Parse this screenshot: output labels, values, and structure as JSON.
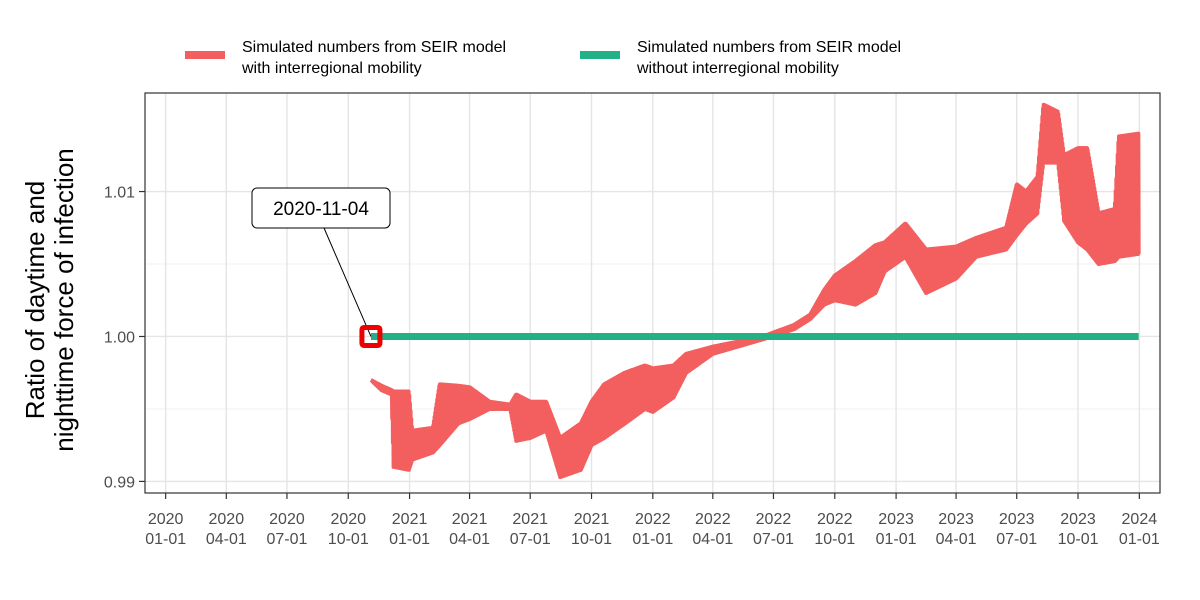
{
  "chart_data": {
    "type": "line",
    "title": "",
    "xlabel": "",
    "ylabel_lines": [
      "Ratio of daytime and",
      "nighttime force of infection"
    ],
    "xlim": [
      "2019-12-01",
      "2024-02-01"
    ],
    "ylim": [
      0.9892,
      1.0168
    ],
    "grid": true,
    "legend_position": "top",
    "x_ticks": [
      {
        "date": "2020-01-01",
        "line1": "2020",
        "line2": "01-01"
      },
      {
        "date": "2020-04-01",
        "line1": "2020",
        "line2": "04-01"
      },
      {
        "date": "2020-07-01",
        "line1": "2020",
        "line2": "07-01"
      },
      {
        "date": "2020-10-01",
        "line1": "2020",
        "line2": "10-01"
      },
      {
        "date": "2021-01-01",
        "line1": "2021",
        "line2": "01-01"
      },
      {
        "date": "2021-04-01",
        "line1": "2021",
        "line2": "04-01"
      },
      {
        "date": "2021-07-01",
        "line1": "2021",
        "line2": "07-01"
      },
      {
        "date": "2021-10-01",
        "line1": "2021",
        "line2": "10-01"
      },
      {
        "date": "2022-01-01",
        "line1": "2022",
        "line2": "01-01"
      },
      {
        "date": "2022-04-01",
        "line1": "2022",
        "line2": "04-01"
      },
      {
        "date": "2022-07-01",
        "line1": "2022",
        "line2": "07-01"
      },
      {
        "date": "2022-10-01",
        "line1": "2022",
        "line2": "10-01"
      },
      {
        "date": "2023-01-01",
        "line1": "2023",
        "line2": "01-01"
      },
      {
        "date": "2023-04-01",
        "line1": "2023",
        "line2": "04-01"
      },
      {
        "date": "2023-07-01",
        "line1": "2023",
        "line2": "07-01"
      },
      {
        "date": "2023-10-01",
        "line1": "2023",
        "line2": "10-01"
      },
      {
        "date": "2024-01-01",
        "line1": "2024",
        "line2": "01-01"
      }
    ],
    "y_ticks": [
      {
        "value": 0.99,
        "label": "0.99"
      },
      {
        "value": 1.0,
        "label": "1.00"
      },
      {
        "value": 1.01,
        "label": "1.01"
      }
    ],
    "series": [
      {
        "key": "with_mobility",
        "name_lines": [
          "Simulated numbers from SEIR model",
          "with interregional mobility"
        ],
        "color": "#F35E5E",
        "style": "oscillating-band",
        "points": [
          {
            "date": "2020-11-04",
            "low": 0.997,
            "high": 0.997
          },
          {
            "date": "2020-11-20",
            "low": 0.9963,
            "high": 0.9966
          },
          {
            "date": "2020-12-05",
            "low": 0.996,
            "high": 0.9963
          },
          {
            "date": "2020-12-08",
            "low": 0.991,
            "high": 0.9962
          },
          {
            "date": "2020-12-31",
            "low": 0.9908,
            "high": 0.9962
          },
          {
            "date": "2021-01-05",
            "low": 0.9915,
            "high": 0.9935
          },
          {
            "date": "2021-02-05",
            "low": 0.992,
            "high": 0.9937
          },
          {
            "date": "2021-02-15",
            "low": 0.9925,
            "high": 0.9967
          },
          {
            "date": "2021-03-15",
            "low": 0.994,
            "high": 0.9966
          },
          {
            "date": "2021-04-01",
            "low": 0.9943,
            "high": 0.9965
          },
          {
            "date": "2021-05-01",
            "low": 0.995,
            "high": 0.9955
          },
          {
            "date": "2021-06-01",
            "low": 0.995,
            "high": 0.9953
          },
          {
            "date": "2021-06-10",
            "low": 0.9928,
            "high": 0.996
          },
          {
            "date": "2021-07-01",
            "low": 0.993,
            "high": 0.9955
          },
          {
            "date": "2021-07-25",
            "low": 0.9935,
            "high": 0.9955
          },
          {
            "date": "2021-08-15",
            "low": 0.9903,
            "high": 0.993
          },
          {
            "date": "2021-09-15",
            "low": 0.9908,
            "high": 0.994
          },
          {
            "date": "2021-10-01",
            "low": 0.9925,
            "high": 0.9955
          },
          {
            "date": "2021-10-20",
            "low": 0.993,
            "high": 0.9967
          },
          {
            "date": "2021-11-20",
            "low": 0.994,
            "high": 0.9975
          },
          {
            "date": "2021-12-20",
            "low": 0.995,
            "high": 0.998
          },
          {
            "date": "2022-01-01",
            "low": 0.9948,
            "high": 0.9978
          },
          {
            "date": "2022-02-01",
            "low": 0.9958,
            "high": 0.998
          },
          {
            "date": "2022-02-20",
            "low": 0.9975,
            "high": 0.9988
          },
          {
            "date": "2022-04-01",
            "low": 0.9988,
            "high": 0.9993
          },
          {
            "date": "2022-06-15",
            "low": 0.9998,
            "high": 1.0
          },
          {
            "date": "2022-08-01",
            "low": 1.0005,
            "high": 1.0008
          },
          {
            "date": "2022-08-25",
            "low": 1.0012,
            "high": 1.0015
          },
          {
            "date": "2022-09-15",
            "low": 1.0022,
            "high": 1.0032
          },
          {
            "date": "2022-10-01",
            "low": 1.0025,
            "high": 1.0042
          },
          {
            "date": "2022-11-01",
            "low": 1.0022,
            "high": 1.0052
          },
          {
            "date": "2022-12-01",
            "low": 1.003,
            "high": 1.0063
          },
          {
            "date": "2022-12-15",
            "low": 1.0045,
            "high": 1.0065
          },
          {
            "date": "2023-01-15",
            "low": 1.0055,
            "high": 1.0078
          },
          {
            "date": "2023-02-15",
            "low": 1.003,
            "high": 1.006
          },
          {
            "date": "2023-04-01",
            "low": 1.004,
            "high": 1.0062
          },
          {
            "date": "2023-05-01",
            "low": 1.0055,
            "high": 1.0068
          },
          {
            "date": "2023-06-15",
            "low": 1.006,
            "high": 1.0075
          },
          {
            "date": "2023-07-01",
            "low": 1.007,
            "high": 1.0105
          },
          {
            "date": "2023-07-15",
            "low": 1.0078,
            "high": 1.01
          },
          {
            "date": "2023-08-01",
            "low": 1.0085,
            "high": 1.011
          },
          {
            "date": "2023-08-10",
            "low": 1.012,
            "high": 1.016
          },
          {
            "date": "2023-09-01",
            "low": 1.012,
            "high": 1.0155
          },
          {
            "date": "2023-09-10",
            "low": 1.008,
            "high": 1.0125
          },
          {
            "date": "2023-10-01",
            "low": 1.0065,
            "high": 1.013
          },
          {
            "date": "2023-10-15",
            "low": 1.006,
            "high": 1.013
          },
          {
            "date": "2023-11-01",
            "low": 1.005,
            "high": 1.0085
          },
          {
            "date": "2023-11-25",
            "low": 1.0052,
            "high": 1.0088
          },
          {
            "date": "2023-12-01",
            "low": 1.0055,
            "high": 1.0138
          },
          {
            "date": "2023-12-31",
            "low": 1.0057,
            "high": 1.014
          }
        ]
      },
      {
        "key": "without_mobility",
        "name_lines": [
          "Simulated numbers from SEIR model",
          "without interregional mobility"
        ],
        "color": "#22B084",
        "style": "line",
        "points": [
          {
            "date": "2020-11-04",
            "value": 1.0
          },
          {
            "date": "2023-12-31",
            "value": 1.0
          }
        ]
      }
    ],
    "annotation": {
      "label": "2020-11-04",
      "date": "2020-11-04",
      "value": 1.0,
      "marker_color": "#EE0000"
    }
  }
}
